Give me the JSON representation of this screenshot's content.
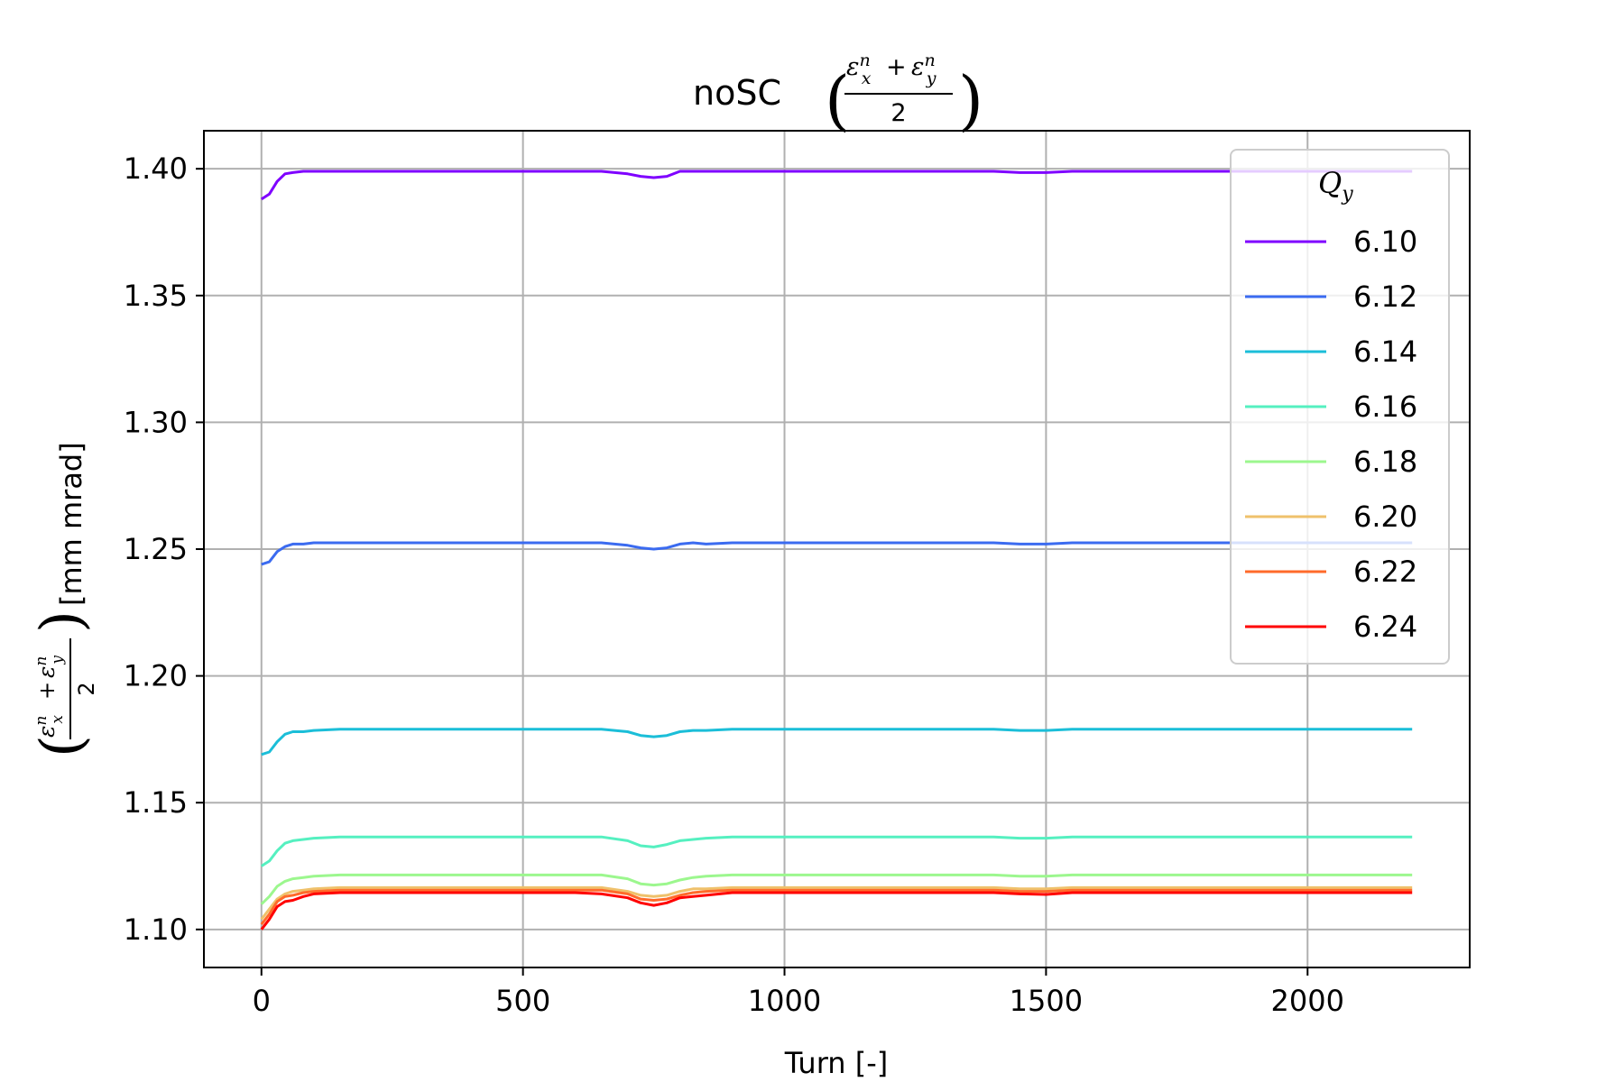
{
  "chart_data": {
    "type": "line",
    "title_prefix": "noSC",
    "xlabel": "Turn [-]",
    "ylabel_unit": "[mm mrad]",
    "math": {
      "eps": "ε",
      "n": "n",
      "x": "x",
      "y": "y",
      "plus": "+",
      "two": "2"
    },
    "xlim": [
      -110,
      2310
    ],
    "ylim": [
      1.085,
      1.415
    ],
    "xticks": [
      0,
      500,
      1000,
      1500,
      2000
    ],
    "xtick_labels": [
      "0",
      "500",
      "1000",
      "1500",
      "2000"
    ],
    "yticks": [
      1.1,
      1.15,
      1.2,
      1.25,
      1.3,
      1.35,
      1.4
    ],
    "ytick_labels": [
      "1.10",
      "1.15",
      "1.20",
      "1.25",
      "1.30",
      "1.35",
      "1.40"
    ],
    "grid": true,
    "legend": {
      "position": "top-right",
      "title_symbol": "Q",
      "title_sub": "y"
    },
    "x": [
      0,
      15,
      30,
      45,
      60,
      80,
      100,
      150,
      200,
      300,
      400,
      500,
      600,
      650,
      700,
      725,
      750,
      775,
      800,
      825,
      850,
      900,
      1000,
      1100,
      1200,
      1300,
      1400,
      1450,
      1500,
      1550,
      1600,
      1700,
      1800,
      1900,
      2000,
      2100,
      2200
    ],
    "series": [
      {
        "name": "6.10",
        "color": "#7f00ff",
        "values": [
          1.388,
          1.39,
          1.395,
          1.398,
          1.3985,
          1.399,
          1.399,
          1.399,
          1.399,
          1.399,
          1.399,
          1.399,
          1.399,
          1.399,
          1.398,
          1.397,
          1.3965,
          1.397,
          1.399,
          1.399,
          1.399,
          1.399,
          1.399,
          1.399,
          1.399,
          1.399,
          1.399,
          1.3985,
          1.3985,
          1.399,
          1.399,
          1.399,
          1.399,
          1.399,
          1.399,
          1.399,
          1.399
        ]
      },
      {
        "name": "6.12",
        "color": "#3b6bf0",
        "values": [
          1.244,
          1.245,
          1.249,
          1.251,
          1.252,
          1.252,
          1.2525,
          1.2525,
          1.2525,
          1.2525,
          1.2525,
          1.2525,
          1.2525,
          1.2525,
          1.2515,
          1.2505,
          1.25,
          1.2505,
          1.252,
          1.2525,
          1.252,
          1.2525,
          1.2525,
          1.2525,
          1.2525,
          1.2525,
          1.2525,
          1.252,
          1.252,
          1.2525,
          1.2525,
          1.2525,
          1.2525,
          1.2525,
          1.2525,
          1.2525,
          1.2525
        ]
      },
      {
        "name": "6.14",
        "color": "#1bbed8",
        "values": [
          1.169,
          1.17,
          1.174,
          1.177,
          1.178,
          1.178,
          1.1785,
          1.179,
          1.179,
          1.179,
          1.179,
          1.179,
          1.179,
          1.179,
          1.178,
          1.1765,
          1.176,
          1.1765,
          1.178,
          1.1785,
          1.1785,
          1.179,
          1.179,
          1.179,
          1.179,
          1.179,
          1.179,
          1.1785,
          1.1785,
          1.179,
          1.179,
          1.179,
          1.179,
          1.179,
          1.179,
          1.179,
          1.179
        ]
      },
      {
        "name": "6.16",
        "color": "#55f0c0",
        "values": [
          1.125,
          1.127,
          1.131,
          1.134,
          1.135,
          1.1355,
          1.136,
          1.1365,
          1.1365,
          1.1365,
          1.1365,
          1.1365,
          1.1365,
          1.1365,
          1.135,
          1.133,
          1.1325,
          1.1335,
          1.135,
          1.1355,
          1.136,
          1.1365,
          1.1365,
          1.1365,
          1.1365,
          1.1365,
          1.1365,
          1.136,
          1.136,
          1.1365,
          1.1365,
          1.1365,
          1.1365,
          1.1365,
          1.1365,
          1.1365,
          1.1365
        ]
      },
      {
        "name": "6.18",
        "color": "#9cf78e",
        "values": [
          1.11,
          1.113,
          1.117,
          1.119,
          1.12,
          1.1205,
          1.121,
          1.1215,
          1.1215,
          1.1215,
          1.1215,
          1.1215,
          1.1215,
          1.1215,
          1.12,
          1.118,
          1.1175,
          1.118,
          1.1195,
          1.1205,
          1.121,
          1.1215,
          1.1215,
          1.1215,
          1.1215,
          1.1215,
          1.1215,
          1.121,
          1.121,
          1.1215,
          1.1215,
          1.1215,
          1.1215,
          1.1215,
          1.1215,
          1.1215,
          1.1215
        ]
      },
      {
        "name": "6.20",
        "color": "#efc16b",
        "values": [
          1.104,
          1.108,
          1.112,
          1.114,
          1.115,
          1.1155,
          1.116,
          1.1165,
          1.1165,
          1.1165,
          1.1165,
          1.1165,
          1.1165,
          1.1165,
          1.115,
          1.1135,
          1.113,
          1.1135,
          1.115,
          1.116,
          1.116,
          1.1165,
          1.1165,
          1.1165,
          1.1165,
          1.1165,
          1.1165,
          1.116,
          1.116,
          1.1165,
          1.1165,
          1.1165,
          1.1165,
          1.1165,
          1.1165,
          1.1165,
          1.1165
        ]
      },
      {
        "name": "6.22",
        "color": "#ff6a2a",
        "values": [
          1.102,
          1.106,
          1.111,
          1.113,
          1.1135,
          1.1145,
          1.115,
          1.1155,
          1.1155,
          1.1155,
          1.1155,
          1.1155,
          1.1155,
          1.1155,
          1.114,
          1.112,
          1.1115,
          1.112,
          1.1135,
          1.1145,
          1.115,
          1.1155,
          1.1155,
          1.1155,
          1.1155,
          1.1155,
          1.1155,
          1.115,
          1.115,
          1.1155,
          1.1155,
          1.1155,
          1.1155,
          1.1155,
          1.1155,
          1.1155,
          1.1155
        ]
      },
      {
        "name": "6.24",
        "color": "#ff0000",
        "values": [
          1.1,
          1.104,
          1.109,
          1.111,
          1.1115,
          1.113,
          1.114,
          1.1145,
          1.1145,
          1.1145,
          1.1145,
          1.1145,
          1.1145,
          1.114,
          1.1125,
          1.1105,
          1.1095,
          1.1105,
          1.1125,
          1.113,
          1.1135,
          1.1145,
          1.1145,
          1.1145,
          1.1145,
          1.1145,
          1.1145,
          1.114,
          1.1138,
          1.1145,
          1.1145,
          1.1145,
          1.1145,
          1.1145,
          1.1145,
          1.1145,
          1.1145
        ]
      }
    ]
  }
}
